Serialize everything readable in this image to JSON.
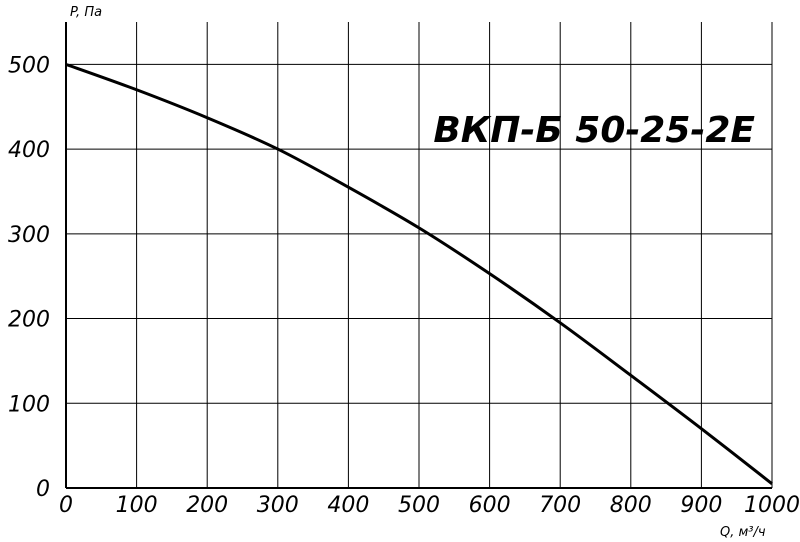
{
  "chart_data": {
    "type": "line",
    "title": "ВКП-Б 50-25-2E",
    "xlabel": "Q, м³/ч",
    "ylabel": "P, Па",
    "xlim": [
      0,
      1000
    ],
    "ylim": [
      0,
      550
    ],
    "x_ticks": [
      "0",
      "100",
      "200",
      "300",
      "400",
      "500",
      "600",
      "700",
      "800",
      "900",
      "1000"
    ],
    "y_ticks": [
      "0",
      "100",
      "200",
      "300",
      "400",
      "500"
    ],
    "grid": true,
    "series": [
      {
        "x": [
          0,
          100,
          200,
          300,
          400,
          500,
          600,
          700,
          800,
          900,
          1000
        ],
        "values": [
          500,
          470,
          437,
          400,
          355,
          307,
          253,
          195,
          133,
          70,
          5
        ]
      }
    ]
  }
}
